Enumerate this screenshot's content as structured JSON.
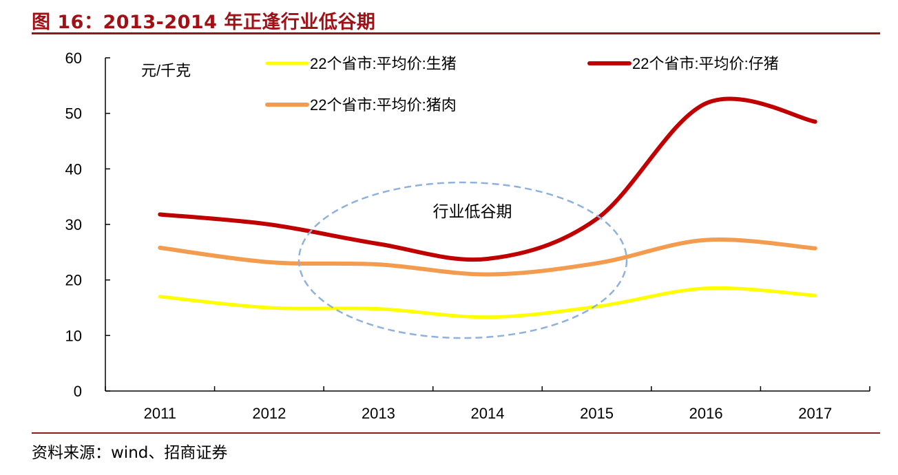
{
  "figure": {
    "title": "图 16：2013-2014 年正逢行业低谷期",
    "source": "资料来源：wind、招商证券"
  },
  "chart_data": {
    "type": "line",
    "ylabel": "元/千克",
    "ylim": [
      0,
      60
    ],
    "yticks": [
      0,
      10,
      20,
      30,
      40,
      50,
      60
    ],
    "categories": [
      "2011",
      "2012",
      "2013",
      "2014",
      "2015",
      "2016",
      "2017"
    ],
    "grid": false,
    "legend_position": "top",
    "annotation": "行业低谷期",
    "series": [
      {
        "name": "22个省市:平均价:生猪",
        "color": "#ffff00",
        "values": [
          17.0,
          15.0,
          14.8,
          13.3,
          15.2,
          18.5,
          17.2
        ]
      },
      {
        "name": "22个省市:平均价:仔猪",
        "color": "#c00000",
        "values": [
          31.8,
          30.0,
          26.5,
          23.8,
          31.0,
          51.8,
          48.5
        ]
      },
      {
        "name": "22个省市:平均价:猪肉",
        "color": "#f39b4e",
        "values": [
          25.8,
          23.2,
          22.8,
          21.0,
          23.0,
          27.2,
          25.7
        ]
      }
    ]
  }
}
